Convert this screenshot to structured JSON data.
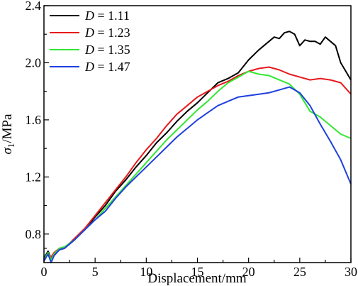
{
  "chart_data": {
    "type": "line",
    "xlabel": "Displacement/mm",
    "ylabel": "σ1/MPa",
    "ylabel_main": "σ",
    "ylabel_sub": "1",
    "ylabel_unit": "/MPa",
    "xlim": [
      0,
      30
    ],
    "ylim": [
      0.6,
      2.4
    ],
    "xticks": [
      0,
      5,
      10,
      15,
      20,
      25,
      30
    ],
    "yticks": [
      0.8,
      1.2,
      1.6,
      2.0,
      2.4
    ],
    "xtick_labels": [
      "0",
      "5",
      "10",
      "15",
      "20",
      "25",
      "30"
    ],
    "ytick_labels": [
      "0.8",
      "1.2",
      "1.6",
      "2.0",
      "2.4"
    ],
    "grid": false,
    "legend_position": "top-left",
    "series": [
      {
        "name": "D = 1.11",
        "name_var": "D",
        "name_rest": " = 1.11",
        "color": "#000000",
        "x": [
          0,
          0.4,
          0.7,
          1.0,
          1.5,
          2.0,
          3,
          4,
          5,
          6,
          7,
          8,
          9,
          10,
          11,
          12,
          13,
          14,
          15,
          16,
          17,
          18,
          19,
          20,
          21,
          22,
          22.5,
          23,
          23.5,
          24,
          24.5,
          25,
          25.5,
          26,
          26.5,
          27,
          27.5,
          28,
          28.5,
          29,
          29.5,
          30
        ],
        "y": [
          0.63,
          0.68,
          0.63,
          0.65,
          0.69,
          0.7,
          0.76,
          0.83,
          0.92,
          1.0,
          1.1,
          1.18,
          1.27,
          1.35,
          1.44,
          1.51,
          1.59,
          1.66,
          1.72,
          1.79,
          1.86,
          1.89,
          1.93,
          2.02,
          2.09,
          2.15,
          2.18,
          2.17,
          2.21,
          2.22,
          2.2,
          2.12,
          2.16,
          2.15,
          2.15,
          2.13,
          2.18,
          2.15,
          2.12,
          2.0,
          1.94,
          1.88
        ]
      },
      {
        "name": "D = 1.23",
        "name_var": "D",
        "name_rest": " = 1.23",
        "color": "#e8191b",
        "x": [
          0,
          0.4,
          0.7,
          1.0,
          1.5,
          2.0,
          3,
          4,
          5,
          6,
          7,
          8,
          9,
          10,
          11,
          12,
          13,
          14,
          15,
          16,
          17,
          18,
          19,
          20,
          21,
          22,
          23,
          24,
          25,
          26,
          27,
          28,
          29,
          30
        ],
        "y": [
          0.62,
          0.66,
          0.64,
          0.67,
          0.7,
          0.7,
          0.77,
          0.84,
          0.93,
          1.02,
          1.11,
          1.2,
          1.3,
          1.39,
          1.47,
          1.56,
          1.64,
          1.7,
          1.76,
          1.8,
          1.84,
          1.87,
          1.91,
          1.94,
          1.96,
          1.97,
          1.95,
          1.92,
          1.9,
          1.88,
          1.89,
          1.88,
          1.86,
          1.78
        ]
      },
      {
        "name": "D = 1.35",
        "name_var": "D",
        "name_rest": " = 1.35",
        "color": "#33e633",
        "x": [
          0,
          0.4,
          0.7,
          1.0,
          1.5,
          2.0,
          3,
          4,
          5,
          6,
          7,
          8,
          9,
          10,
          11,
          12,
          13,
          14,
          15,
          16,
          17,
          18,
          19,
          20,
          21,
          22,
          23,
          24,
          25,
          26,
          27,
          28,
          29,
          30
        ],
        "y": [
          0.62,
          0.67,
          0.62,
          0.66,
          0.7,
          0.71,
          0.76,
          0.83,
          0.9,
          0.98,
          1.06,
          1.14,
          1.22,
          1.3,
          1.38,
          1.46,
          1.53,
          1.6,
          1.67,
          1.73,
          1.8,
          1.86,
          1.9,
          1.94,
          1.92,
          1.91,
          1.88,
          1.85,
          1.78,
          1.66,
          1.62,
          1.56,
          1.5,
          1.47
        ]
      },
      {
        "name": "D = 1.47",
        "name_var": "D",
        "name_rest": " = 1.47",
        "color": "#1f3fe0",
        "x": [
          0,
          0.4,
          0.7,
          1.0,
          1.5,
          2.0,
          3,
          4,
          5,
          6,
          7,
          8,
          9,
          10,
          11,
          12,
          13,
          14,
          15,
          16,
          17,
          18,
          19,
          20,
          21,
          22,
          23,
          24,
          25,
          26,
          27,
          28,
          29,
          30
        ],
        "y": [
          0.61,
          0.66,
          0.6,
          0.65,
          0.69,
          0.7,
          0.76,
          0.83,
          0.9,
          0.96,
          1.05,
          1.13,
          1.2,
          1.27,
          1.34,
          1.41,
          1.48,
          1.54,
          1.6,
          1.65,
          1.7,
          1.73,
          1.76,
          1.77,
          1.78,
          1.79,
          1.81,
          1.83,
          1.79,
          1.7,
          1.57,
          1.45,
          1.32,
          1.15
        ]
      }
    ]
  }
}
